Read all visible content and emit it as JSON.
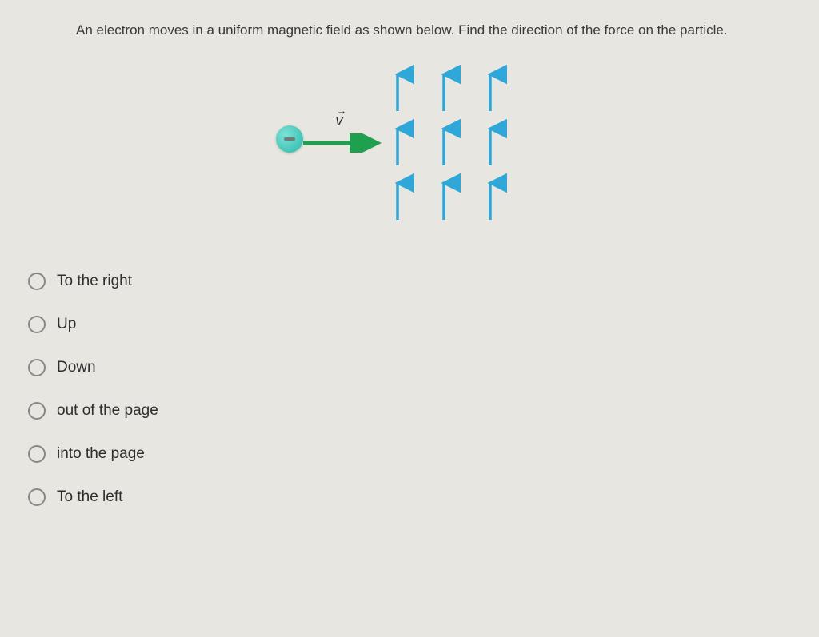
{
  "question": {
    "text": "An electron moves in a uniform magnetic field as shown below. Find the direction of the force on the particle."
  },
  "diagram": {
    "velocity_label": "v",
    "velocity": {
      "arrow_color": "#1fa04f",
      "arrow_length": 88,
      "arrow_stroke": 5
    },
    "electron": {
      "fill_light": "#7de3d9",
      "fill_dark": "#28b8a6"
    },
    "field": {
      "arrow_color": "#2fa7d8",
      "columns": 3,
      "rows": 3,
      "col_spacing": 58,
      "row_spacing": 68,
      "arrow_length": 46,
      "arrow_stroke": 3.5
    }
  },
  "options": [
    {
      "label": "To the right"
    },
    {
      "label": "Up"
    },
    {
      "label": "Down"
    },
    {
      "label": "out of the page"
    },
    {
      "label": "into the page"
    },
    {
      "label": "To the left"
    }
  ],
  "colors": {
    "background": "#e8e6e0",
    "text": "#3a3a3a",
    "option_text": "#2e2e2e",
    "radio_border": "#8a8886"
  }
}
